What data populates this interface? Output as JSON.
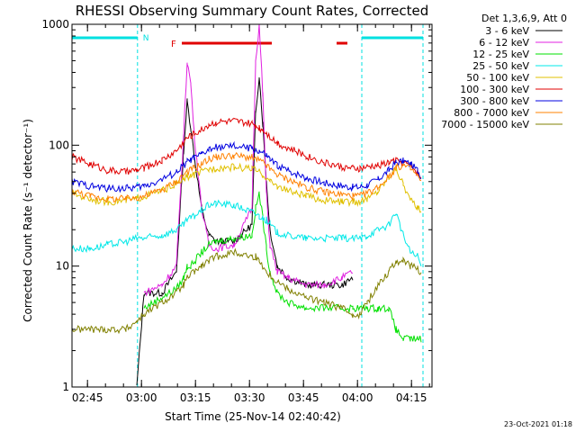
{
  "chart_data": {
    "type": "line",
    "title": "RHESSI Observing Summary Count Rates, Corrected",
    "xlabel": "Start Time (25-Nov-14 02:40:42)",
    "ylabel": "Corrected Count Rate (s⁻¹ detector⁻¹)",
    "y_scale": "log",
    "ylim": [
      1,
      1000
    ],
    "xlim_minutes": [
      0,
      100
    ],
    "y_ticks": [
      "1",
      "10",
      "100",
      "1000"
    ],
    "x_ticks": [
      {
        "label": "02:45",
        "min": 4.3
      },
      {
        "label": "03:00",
        "min": 19.3
      },
      {
        "label": "03:15",
        "min": 34.3
      },
      {
        "label": "03:30",
        "min": 49.3
      },
      {
        "label": "03:45",
        "min": 64.3
      },
      {
        "label": "04:00",
        "min": 79.3
      },
      {
        "label": "04:15",
        "min": 94.3
      }
    ],
    "legend_header": "Det 1,3,6,9, Att 0",
    "legend_position": "right",
    "timestamp": "23-Oct-2021 01:18",
    "flags": {
      "night_label": "N",
      "flare_label": "F",
      "night_color": "#00e0e0",
      "flare_color": "#e00000",
      "night_spans": [
        [
          0,
          18.2
        ],
        [
          80.5,
          97.5
        ]
      ],
      "flare_spans": [
        [
          30.5,
          55.5
        ],
        [
          73.5,
          76.5
        ]
      ],
      "boundaries": [
        18.2,
        80.5,
        97.5
      ]
    },
    "x": [
      0,
      5,
      10,
      15,
      18,
      20,
      25,
      29,
      31,
      32,
      33,
      34,
      36,
      38,
      40,
      45,
      50,
      51,
      52,
      53,
      54,
      55,
      57,
      60,
      65,
      70,
      75,
      78,
      80,
      82,
      85,
      88,
      90,
      92,
      94,
      96,
      97
    ],
    "series": [
      {
        "name": "3 - 6 keV",
        "color": "#000000",
        "values": [
          null,
          null,
          null,
          null,
          1,
          6,
          6,
          9,
          90,
          230,
          140,
          80,
          30,
          18,
          16,
          16,
          22,
          180,
          380,
          150,
          50,
          20,
          10,
          8,
          7,
          7,
          7,
          8,
          null,
          null,
          null,
          null,
          null,
          null,
          null,
          null,
          null
        ]
      },
      {
        "name": "6 - 12 keV",
        "color": "#e020e0",
        "values": [
          null,
          null,
          null,
          null,
          null,
          6,
          7,
          10,
          120,
          500,
          320,
          120,
          30,
          15,
          14,
          15,
          30,
          500,
          1000,
          260,
          40,
          15,
          9,
          8,
          7,
          7,
          8,
          9,
          null,
          null,
          null,
          null,
          null,
          null,
          null,
          null,
          null
        ]
      },
      {
        "name": "12 - 25 keV",
        "color": "#00e000",
        "values": [
          null,
          null,
          null,
          null,
          null,
          4.5,
          5.5,
          6.5,
          8,
          10,
          10,
          11,
          13,
          15,
          16,
          17,
          18,
          30,
          40,
          25,
          14,
          9,
          6,
          5,
          4.5,
          4.5,
          4.5,
          4.5,
          4.5,
          4.5,
          4.5,
          4.5,
          3,
          2.5,
          2.5,
          2.5,
          2.5
        ]
      },
      {
        "name": "25 - 50 keV",
        "color": "#00e8e8",
        "values": [
          14,
          14,
          15,
          16,
          17,
          17,
          18,
          20,
          22,
          24,
          25,
          26,
          29,
          32,
          33,
          32,
          28,
          27,
          26,
          25,
          24,
          22,
          19,
          18,
          17,
          17,
          17,
          17,
          17,
          18,
          20,
          22,
          28,
          18,
          13,
          12,
          10
        ]
      },
      {
        "name": "50 - 100 keV",
        "color": "#e0c000",
        "values": [
          40,
          36,
          34,
          35,
          36,
          38,
          42,
          48,
          52,
          55,
          56,
          57,
          60,
          63,
          65,
          66,
          64,
          62,
          60,
          57,
          54,
          50,
          46,
          42,
          38,
          35,
          34,
          34,
          34,
          36,
          42,
          55,
          65,
          48,
          35,
          30,
          30
        ]
      },
      {
        "name": "100 - 300 keV",
        "color": "#e00000",
        "values": [
          80,
          70,
          62,
          60,
          62,
          65,
          75,
          90,
          105,
          115,
          120,
          125,
          135,
          148,
          155,
          158,
          150,
          145,
          140,
          135,
          128,
          118,
          105,
          95,
          82,
          72,
          66,
          64,
          64,
          66,
          68,
          72,
          75,
          72,
          68,
          60,
          52
        ]
      },
      {
        "name": "300 - 800 keV",
        "color": "#0000e0",
        "values": [
          50,
          46,
          44,
          44,
          45,
          46,
          52,
          60,
          68,
          73,
          76,
          78,
          84,
          92,
          96,
          98,
          94,
          92,
          89,
          86,
          82,
          76,
          68,
          62,
          54,
          49,
          46,
          45,
          45,
          47,
          52,
          62,
          72,
          74,
          70,
          62,
          55
        ]
      },
      {
        "name": "800 - 7000 keV",
        "color": "#ff8000",
        "values": [
          42,
          38,
          36,
          36,
          37,
          38,
          43,
          50,
          57,
          61,
          63,
          65,
          70,
          77,
          80,
          82,
          79,
          77,
          74,
          72,
          68,
          63,
          57,
          52,
          45,
          41,
          39,
          38,
          38,
          40,
          45,
          55,
          65,
          68,
          64,
          56,
          49
        ]
      },
      {
        "name": "7000 - 15000 keV",
        "color": "#808000",
        "values": [
          3,
          3,
          3,
          3,
          3.5,
          4,
          5,
          6,
          7,
          8,
          8.5,
          9,
          10,
          11,
          12,
          13,
          12,
          12,
          11,
          10,
          9,
          8.5,
          7.5,
          6.5,
          5.5,
          5,
          4.5,
          4,
          4,
          5,
          7,
          9,
          11,
          11,
          10,
          9.5,
          9
        ]
      }
    ]
  }
}
